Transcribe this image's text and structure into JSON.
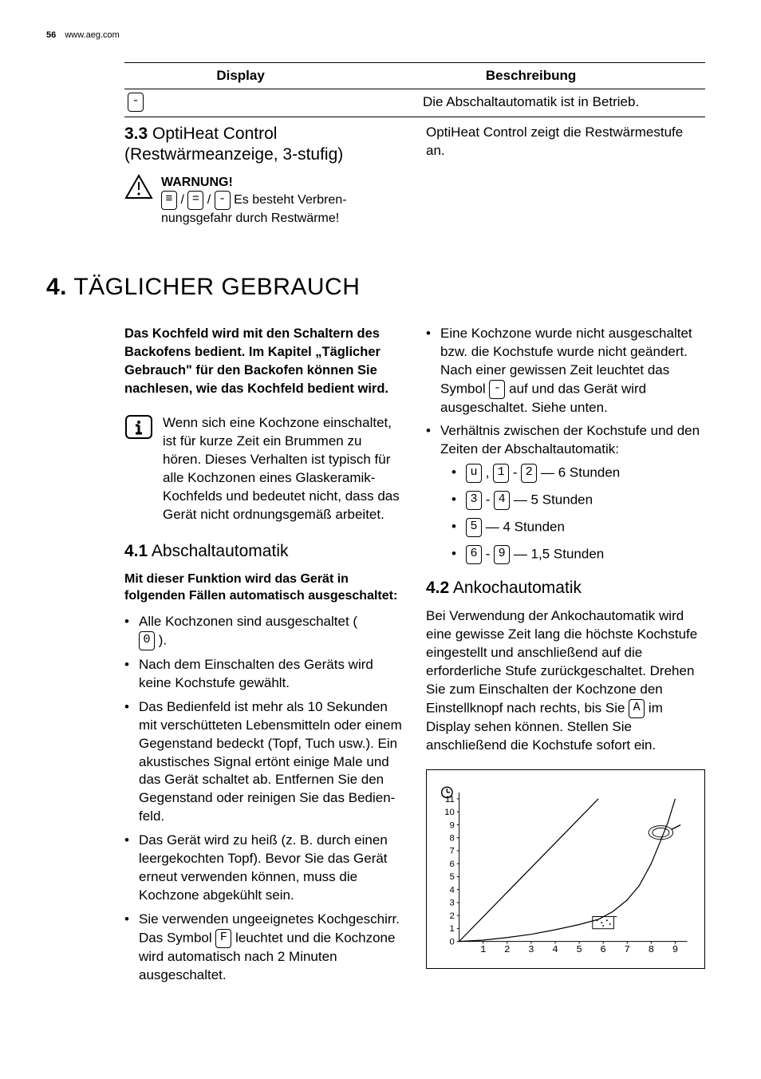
{
  "header": {
    "page_number": "56",
    "site": "www.aeg.com"
  },
  "table": {
    "col1": "Display",
    "col2": "Beschreibung",
    "row1_desc": "Die Abschaltautomatik ist in Betrieb.",
    "row1_symbol": "-"
  },
  "sec33": {
    "num": "3.3",
    "title_l1": "OptiHeat Control",
    "title_l2": "(Restwärmeanzeige, 3-stufig)",
    "warn_title": "WARNUNG!",
    "warn_sym1": "≡",
    "warn_sym2": "=",
    "warn_sym3": "-",
    "warn_text_a": " / ",
    "warn_text_b": " / ",
    "warn_text_c": " Es besteht Verbren-",
    "warn_text_d": "nungsgefahr durch Restwärme!",
    "right_col": "OptiHeat Control zeigt die Restwärme­stufe an."
  },
  "chapter": {
    "num": "4.",
    "title": "TÄGLICHER GEBRAUCH"
  },
  "intro": "Das Kochfeld wird mit den Schaltern des Backofens bedient. Im Kapitel „Täglicher Gebrauch\" für den Back­ofen können Sie nachlesen, wie das Kochfeld bedient wird.",
  "info_note": "Wenn sich eine Kochzone ein­schaltet, ist für kurze Zeit ein Brummen zu hören. Dieses Ver­halten ist typisch für alle Kochzo­nen eines Glaskeramik-Kochfelds und bedeutet nicht, dass das Ge­rät nicht ordnungsgemäß arbei­tet.",
  "sec41": {
    "num": "4.1",
    "title": "Abschaltautomatik",
    "lead": "Mit dieser Funktion wird das Gerät in folgenden Fällen automatisch ausgeschaltet:",
    "b1a": "Alle Kochzonen sind ausgeschaltet (",
    "b1_sym": "0",
    "b1b": " ).",
    "b2": "Nach dem Einschalten des Geräts wird keine Kochstufe gewählt.",
    "b3": "Das Bedienfeld ist mehr als 10 Sekun­den mit verschütteten Lebensmitteln oder einem Gegenstand bedeckt (Topf, Tuch usw.). Ein akustisches Sig­nal ertönt einige Male und das Gerät schaltet ab. Entfernen Sie den Gegen­stand oder reinigen Sie das Bedien­feld.",
    "b4": "Das Gerät wird zu heiß (z. B. durch ei­nen leergekochten Topf). Bevor Sie das Gerät erneut verwenden können, muss die Kochzone abgekühlt sein.",
    "b5a": "Sie verwenden ungeeignetes Kochge­schirr. Das Symbol ",
    "b5_sym": "F",
    "b5b": " leuchtet und die Kochzone wird automatisch nach 2 Mi­nuten ausgeschaltet.",
    "rb1a": "Eine Kochzone wurde nicht ausge­schaltet bzw. die Kochstufe wurde nicht geändert. Nach einer gewissen Zeit leuchtet das Symbol ",
    "rb1_sym": "-",
    "rb1b": " auf und das Gerät wird ausgeschaltet. Siehe unten.",
    "rb2": "Verhältnis zwischen der Kochstufe und den Zeiten der Abschaltautomatik:",
    "t1_s1": "u",
    "t1_sep": " , ",
    "t1_s2": "1",
    "t1_dash": " - ",
    "t1_s3": "2",
    "t1_txt": " — 6 Stunden",
    "t2_s1": "3",
    "t2_dash": " - ",
    "t2_s2": "4",
    "t2_txt": " — 5 Stunden",
    "t3_s1": "5",
    "t3_txt": " — 4 Stunden",
    "t4_s1": "6",
    "t4_dash": " - ",
    "t4_s2": "9",
    "t4_txt": " — 1,5 Stunden"
  },
  "sec42": {
    "num": "4.2",
    "title": "Ankochautomatik",
    "p_a": "Bei Verwendung der Ankochautomatik wird eine gewisse Zeit lang die höchste Kochstufe eingestellt und anschließend auf die erforderliche Stufe zurückge­schaltet. Drehen Sie zum Einschalten der Kochzone den Einstellknopf nach rechts, bis Sie ",
    "p_sym": "A",
    "p_b": " im Display sehen können. Stellen Sie anschließend die Kochstufe sofort ein."
  },
  "chart": {
    "type": "line",
    "y_ticks": [
      "0",
      "1",
      "2",
      "3",
      "4",
      "5",
      "6",
      "7",
      "8",
      "9",
      "10",
      "11"
    ],
    "x_ticks": [
      "1",
      "2",
      "3",
      "4",
      "5",
      "6",
      "7",
      "8",
      "9"
    ],
    "ylim": [
      0,
      11.5
    ],
    "xlim": [
      0,
      9.5
    ],
    "series": [
      {
        "points": [
          [
            0,
            0
          ],
          [
            5.8,
            11
          ]
        ],
        "stroke": "#000000",
        "width": 1.3
      },
      {
        "points": [
          [
            0,
            0
          ],
          [
            1,
            0.1
          ],
          [
            2,
            0.3
          ],
          [
            3,
            0.55
          ],
          [
            4,
            0.9
          ],
          [
            5,
            1.3
          ],
          [
            5.8,
            1.7
          ],
          [
            6.4,
            2.3
          ],
          [
            7,
            3.2
          ],
          [
            7.5,
            4.3
          ],
          [
            8,
            6
          ],
          [
            8.4,
            7.8
          ],
          [
            8.7,
            9.2
          ],
          [
            9,
            11
          ]
        ],
        "stroke": "#000000",
        "width": 1.3
      }
    ],
    "axis_color": "#000000",
    "label_fontsize": 12,
    "background_color": "#ffffff"
  }
}
